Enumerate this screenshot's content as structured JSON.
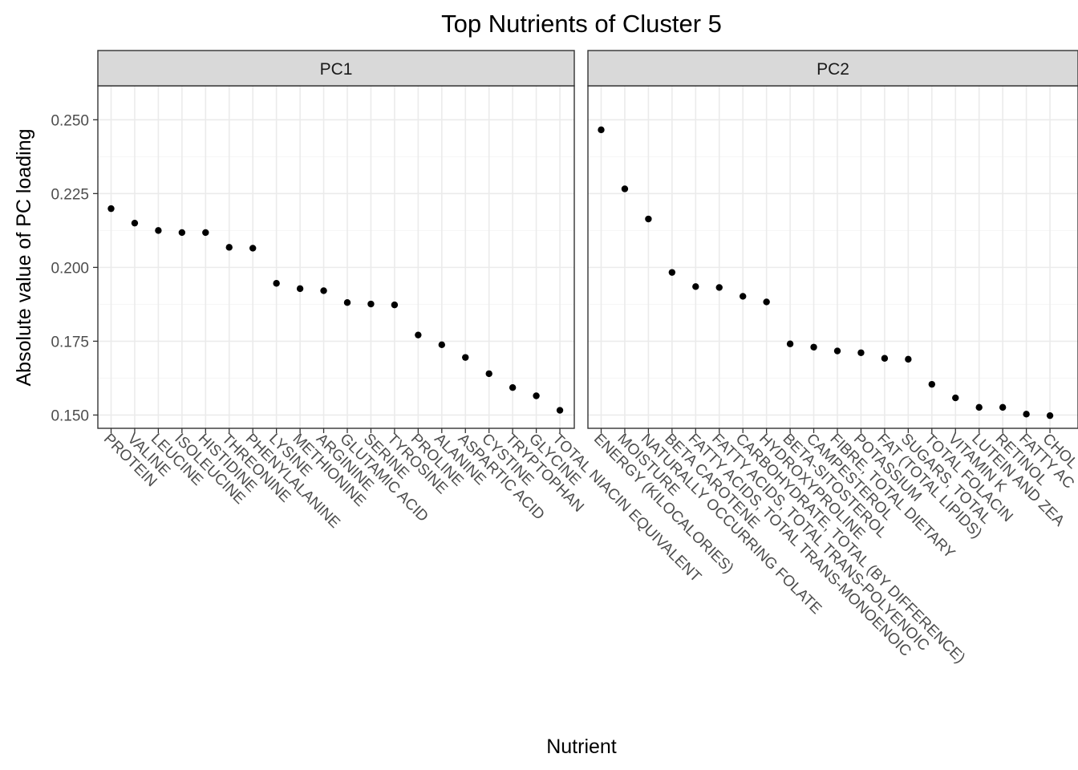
{
  "chart_data": {
    "type": "scatter",
    "title": "Top Nutrients of Cluster 5",
    "xlabel": "Nutrient",
    "ylabel": "Absolute value of PC loading",
    "ylim": [
      0.1455,
      0.2615
    ],
    "yticks": [
      0.15,
      0.175,
      0.2,
      0.225,
      0.25
    ],
    "ytick_labels": [
      "0.150",
      "0.175",
      "0.200",
      "0.225",
      "0.250"
    ],
    "grid": true,
    "panels": [
      {
        "name": "PC1",
        "categories": [
          "PROTEIN",
          "VALINE",
          "LEUCINE",
          "ISOLEUCINE",
          "HISTIDINE",
          "THREONINE",
          "PHENYLALANINE",
          "LYSINE",
          "METHIONINE",
          "ARGININE",
          "GLUTAMIC ACID",
          "SERINE",
          "TYROSINE",
          "PROLINE",
          "ALANINE",
          "ASPARTIC ACID",
          "CYSTINE",
          "TRYPTOPHAN",
          "GLYCINE",
          "TOTAL NIACIN EQUIVALENT"
        ],
        "values": [
          0.2199,
          0.215,
          0.2125,
          0.2118,
          0.2118,
          0.2068,
          0.2065,
          0.1946,
          0.1928,
          0.1921,
          0.1881,
          0.1876,
          0.1873,
          0.1771,
          0.1738,
          0.1695,
          0.164,
          0.1593,
          0.1565,
          0.1516
        ]
      },
      {
        "name": "PC2",
        "categories": [
          "ENERGY (KILOCALORIES)",
          "MOISTURE",
          "NATURALLY OCCURRING FOLATE",
          "BETA CAROTENE",
          "FATTY ACIDS, TOTAL TRANS-MONOENOIC",
          "FATTY ACIDS, TOTAL TRANS-POLYENOIC",
          "CARBOHYDRATE, TOTAL (BY DIFFERENCE)",
          "HYDROXYPROLINE",
          "BETA-SITOSTEROL",
          "CAMPESTEROL",
          "FIBRE, TOTAL DIETARY",
          "POTASSIUM",
          "FAT (TOTAL LIPIDS)",
          "SUGARS, TOTAL",
          "TOTAL FOLACIN",
          "VITAMIN K",
          "LUTEIN AND ZEAXANTHIN",
          "RETINOL",
          "FATTY ACIDS",
          "CHOLESTEROL"
        ],
        "categories_visible": [
          "ENERGY (KILOCALORIES)",
          "MOISTURE",
          "NATURALLY OCCURRING FOLATE",
          "BETA CAROTENE",
          "FATTY ACIDS, TOTAL TRANS-MONOENOIC",
          "FATTY ACIDS, TOTAL TRANS-POLYENOIC",
          "CARBOHYDRATE, TOTAL (BY DIFFERENCE)",
          "HYDROXYPROLINE",
          "BETA-SITOSTEROL",
          "CAMPESTEROL",
          "FIBRE, TOTAL DIETARY",
          "POTASSIUM",
          "FAT (TOTAL LIPIDS)",
          "SUGARS, TOTAL",
          "TOTAL FOLACIN",
          "VITAMIN K",
          "LUTEIN AND ZEA",
          "RETINOL",
          "FATTY AC",
          "CHOL"
        ],
        "values": [
          0.2466,
          0.2266,
          0.2164,
          0.1983,
          0.1935,
          0.1932,
          0.1902,
          0.1883,
          0.1741,
          0.173,
          0.1717,
          0.1711,
          0.1692,
          0.1689,
          0.1604,
          0.1558,
          0.1526,
          0.1526,
          0.1503,
          0.1498
        ]
      }
    ]
  },
  "colors": {
    "point": "#000000",
    "strip_fill": "#d9d9d9",
    "panel_border": "#333333",
    "grid_major": "#ebebeb",
    "grid_minor": "#f5f5f5",
    "tick_text": "#4d4d4d"
  }
}
